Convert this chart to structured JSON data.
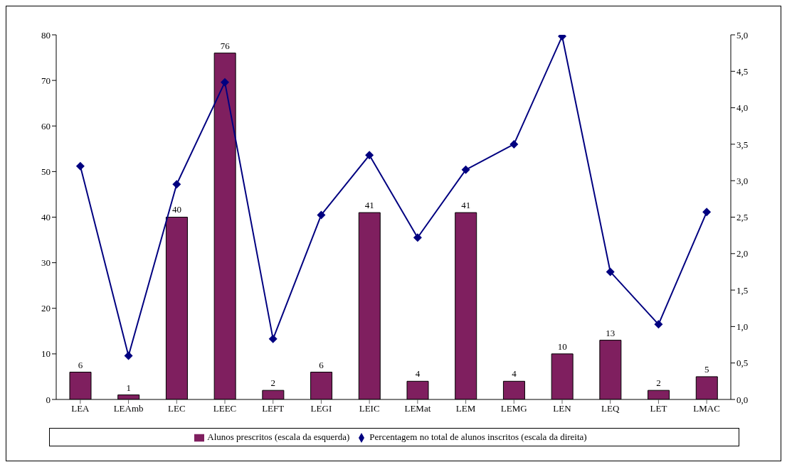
{
  "chart_data": {
    "type": "bar",
    "categories": [
      "LEA",
      "LEAmb",
      "LEC",
      "LEEC",
      "LEFT",
      "LEGI",
      "LEIC",
      "LEMat",
      "LEM",
      "LEMG",
      "LEN",
      "LEQ",
      "LET",
      "LMAC"
    ],
    "series": [
      {
        "name": "Alunos prescritos (escala da esquerda)",
        "color": "#7f1f5f",
        "values": [
          6,
          1,
          40,
          76,
          2,
          6,
          41,
          4,
          41,
          4,
          10,
          13,
          2,
          5
        ],
        "value_labels": [
          "6",
          "1",
          "40",
          "76",
          "2",
          "6",
          "41",
          "4",
          "41",
          "4",
          "10",
          "13",
          "2",
          "5"
        ]
      },
      {
        "name": "Percentagem no total de alunos inscritos (escala da direita)",
        "type": "line",
        "axis": "y2",
        "color": "#000080",
        "marker": "diamond",
        "values": [
          3.2,
          0.6,
          2.95,
          4.35,
          0.83,
          2.53,
          3.35,
          2.22,
          3.15,
          3.5,
          4.98,
          1.75,
          1.03,
          2.57
        ]
      }
    ],
    "ylim": [
      0,
      80
    ],
    "yticks": [
      0,
      10,
      20,
      30,
      40,
      50,
      60,
      70,
      80
    ],
    "y2lim": [
      0,
      5
    ],
    "y2ticks": [
      {
        "value": 0,
        "label": "0,0"
      },
      {
        "value": 0.5,
        "label": "0,5"
      },
      {
        "value": 1,
        "label": "1,0"
      },
      {
        "value": 1.5,
        "label": "1,5"
      },
      {
        "value": 2,
        "label": "2,0"
      },
      {
        "value": 2.5,
        "label": "2,5"
      },
      {
        "value": 3,
        "label": "3,0"
      },
      {
        "value": 3.5,
        "label": "3,5"
      },
      {
        "value": 4,
        "label": "4,0"
      },
      {
        "value": 4.5,
        "label": "4,5"
      },
      {
        "value": 5,
        "label": "5,0"
      }
    ],
    "grid": false,
    "legend": "bottom"
  }
}
